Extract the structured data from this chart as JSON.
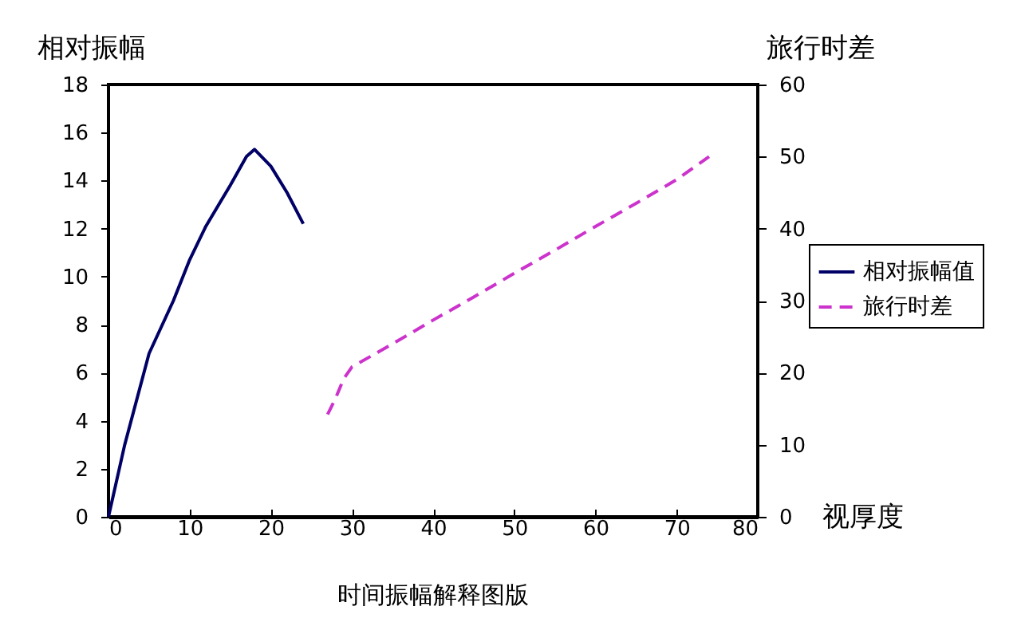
{
  "chart_data": {
    "type": "line",
    "title": "时间振幅解释图版",
    "xlabel": "视厚度",
    "ylabel": "相对振幅",
    "y2label": "旅行时差",
    "xlim": [
      0,
      80
    ],
    "xticks": [
      0,
      10,
      20,
      30,
      40,
      50,
      60,
      70,
      80
    ],
    "ylim": [
      0,
      18
    ],
    "yticks": [
      0,
      2,
      4,
      6,
      8,
      10,
      12,
      14,
      16,
      18
    ],
    "y2lim": [
      0,
      60
    ],
    "y2ticks": [
      0,
      10,
      20,
      30,
      40,
      50,
      60
    ],
    "grid": false,
    "legend": "right",
    "marker": "none",
    "series": [
      {
        "name": "相对振幅值",
        "color": "#000066",
        "line_style": "solid",
        "x": [
          0,
          2,
          5,
          8,
          10,
          12,
          15,
          17,
          18,
          20,
          22,
          24
        ],
        "values": [
          0,
          3,
          6.8,
          9,
          10.7,
          12.1,
          13.8,
          15,
          15.3,
          14.6,
          13.5,
          12.2
        ]
      },
      {
        "name": "旅行时差",
        "color": "#cc33cc",
        "line_style": "dashed",
        "axis": "y2",
        "x": [
          27,
          28,
          29,
          30,
          35,
          40,
          45,
          50,
          55,
          60,
          65,
          70,
          74
        ],
        "values": [
          14.2,
          16.5,
          19.2,
          20.8,
          24,
          27.3,
          30.5,
          33.8,
          37,
          40.3,
          43.5,
          46.8,
          50
        ]
      }
    ]
  }
}
